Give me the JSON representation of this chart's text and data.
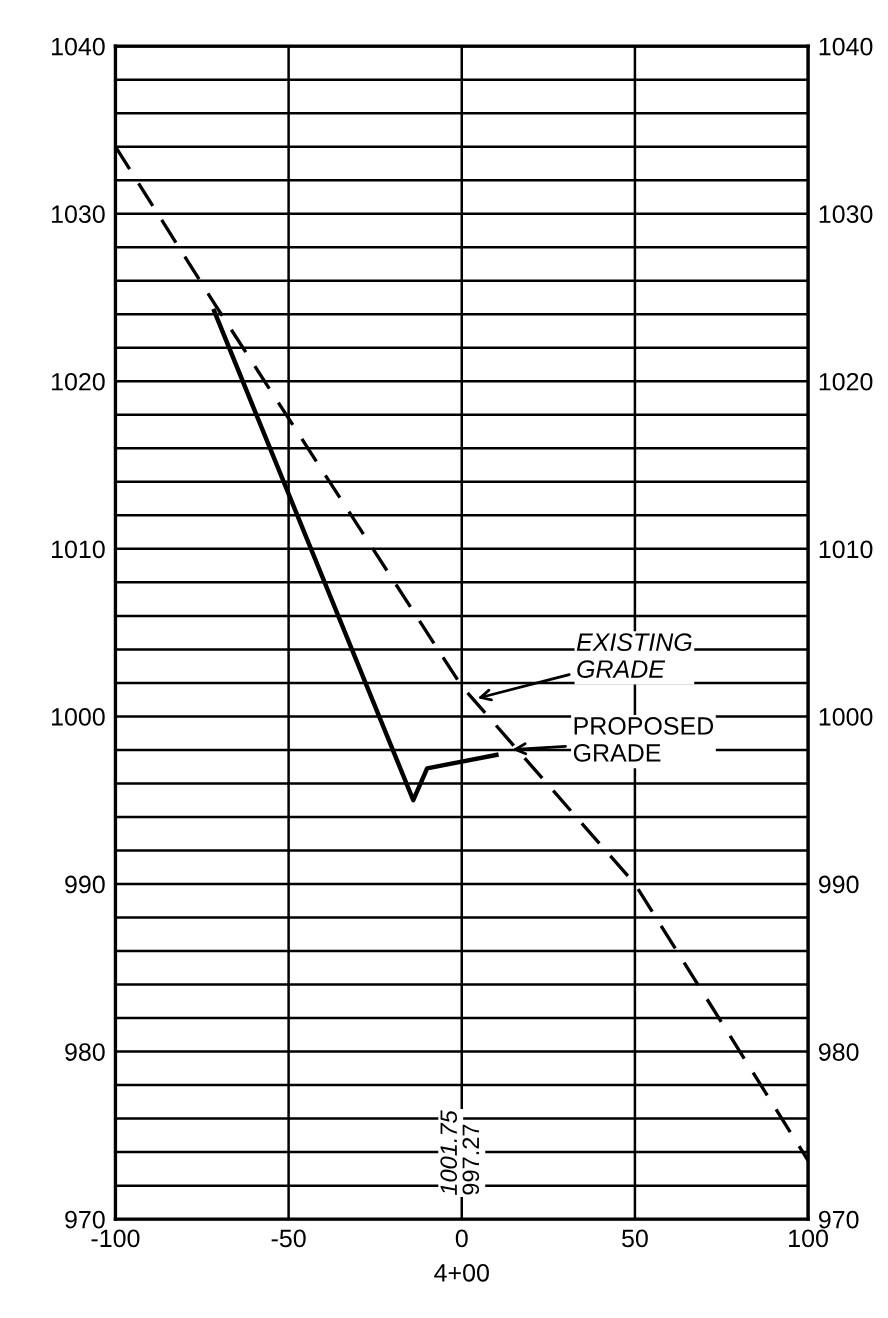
{
  "chart_data": {
    "type": "line",
    "xlabel": "4+00",
    "xlim": [
      -100,
      100
    ],
    "xticks": [
      -100,
      -50,
      0,
      50,
      100
    ],
    "ylim": [
      970,
      1040
    ],
    "yticks": [
      970,
      {
        "value": 972,
        "label": null
      },
      {
        "value": 974,
        "label": null
      },
      {
        "value": 976,
        "label": null
      },
      {
        "value": 978,
        "label": null
      },
      980,
      {
        "value": 982,
        "label": null
      },
      {
        "value": 984,
        "label": null
      },
      {
        "value": 986,
        "label": null
      },
      {
        "value": 988,
        "label": null
      },
      990,
      {
        "value": 992,
        "label": null
      },
      {
        "value": 994,
        "label": null
      },
      {
        "value": 996,
        "label": null
      },
      {
        "value": 998,
        "label": null
      },
      1000,
      {
        "value": 1002,
        "label": null
      },
      {
        "value": 1004,
        "label": null
      },
      {
        "value": 1006,
        "label": null
      },
      {
        "value": 1008,
        "label": null
      },
      1010,
      {
        "value": 1012,
        "label": null
      },
      {
        "value": 1014,
        "label": null
      },
      {
        "value": 1016,
        "label": null
      },
      {
        "value": 1018,
        "label": null
      },
      1020,
      {
        "value": 1022,
        "label": null
      },
      {
        "value": 1024,
        "label": null
      },
      {
        "value": 1026,
        "label": null
      },
      {
        "value": 1028,
        "label": null
      },
      1030,
      {
        "value": 1032,
        "label": null
      },
      {
        "value": 1034,
        "label": null
      },
      {
        "value": 1036,
        "label": null
      },
      {
        "value": 1038,
        "label": null
      },
      1040
    ],
    "y2lim": [
      970,
      1040
    ],
    "y2ticks": [
      970,
      980,
      990,
      1000,
      1010,
      1020,
      1030,
      1040
    ],
    "grid": true,
    "marker": "none",
    "series": [
      {
        "color": "#000000",
        "line_style": "dashed",
        "x": [
          -100,
          -71,
          0,
          50,
          100
        ],
        "values": [
          1034,
          1024.5,
          1001.8,
          990,
          973.5
        ]
      },
      {
        "color": "#000000",
        "line_style": "solid",
        "x": [
          -71.5,
          -14,
          -10,
          0,
          10
        ],
        "values": [
          1024.2,
          995,
          996.9,
          997.3,
          997.7
        ]
      }
    ],
    "annotations": [
      {
        "text": "EXISTING\nGRADE",
        "x": 3,
        "y": 1001
      },
      {
        "text": "PROPOSED\nGRADE",
        "x": 13,
        "y": 998
      },
      "1001.75",
      "997.27"
    ]
  }
}
